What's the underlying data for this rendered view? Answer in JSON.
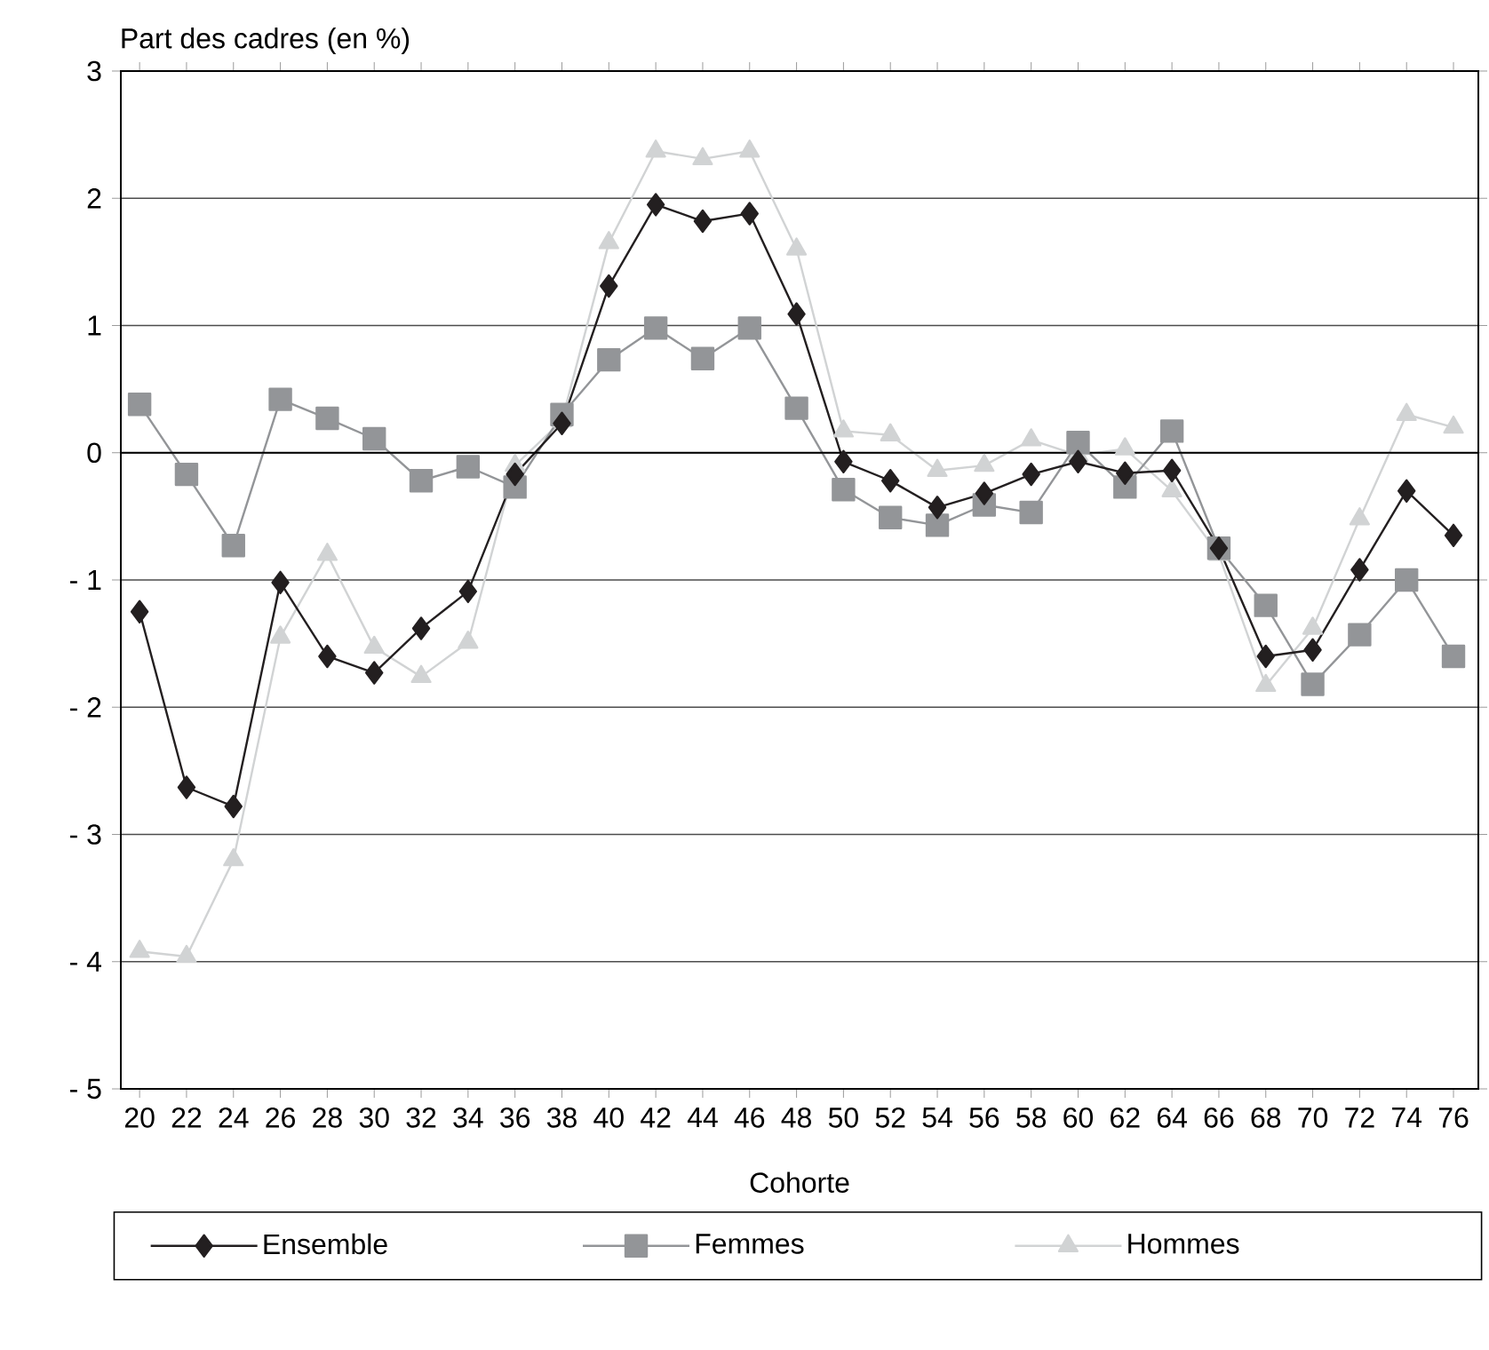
{
  "chart_data": {
    "type": "line",
    "xlabel": "Cohorte",
    "ylabel": "Part des cadres (en %)",
    "categories": [
      "20",
      "22",
      "24",
      "26",
      "28",
      "30",
      "32",
      "34",
      "36",
      "38",
      "40",
      "42",
      "44",
      "46",
      "48",
      "50",
      "52",
      "54",
      "56",
      "58",
      "60",
      "62",
      "64",
      "66",
      "68",
      "70",
      "72",
      "74",
      "76"
    ],
    "series": [
      {
        "name": "Ensemble",
        "color": "#231f20",
        "marker": "diamond",
        "values": [
          -1.25,
          -2.63,
          -2.78,
          -1.02,
          -1.6,
          -1.73,
          -1.38,
          -1.09,
          -0.17,
          0.23,
          1.31,
          1.95,
          1.82,
          1.88,
          1.09,
          -0.07,
          -0.22,
          -0.43,
          -0.32,
          -0.17,
          -0.07,
          -0.16,
          -0.14,
          -0.75,
          -1.6,
          -1.55,
          -0.92,
          -0.3,
          -0.65
        ]
      },
      {
        "name": "Femmes",
        "color": "#939598",
        "marker": "square",
        "values": [
          0.38,
          -0.17,
          -0.73,
          0.42,
          0.27,
          0.11,
          -0.22,
          -0.11,
          -0.27,
          0.3,
          0.73,
          0.98,
          0.74,
          0.98,
          0.35,
          -0.29,
          -0.51,
          -0.57,
          -0.41,
          -0.47,
          0.08,
          -0.27,
          0.17,
          -0.75,
          -1.2,
          -1.82,
          -1.43,
          -1.0,
          -1.6
        ]
      },
      {
        "name": "Hommes",
        "color": "#d1d3d4",
        "marker": "triangle",
        "values": [
          -3.92,
          -3.96,
          -3.2,
          -1.45,
          -0.8,
          -1.53,
          -1.76,
          -1.49,
          -0.1,
          0.25,
          1.65,
          2.37,
          2.31,
          2.37,
          1.6,
          0.17,
          0.14,
          -0.14,
          -0.1,
          0.1,
          -0.02,
          0.03,
          -0.3,
          -0.8,
          -1.83,
          -1.38,
          -0.52,
          0.3,
          0.2
        ]
      }
    ],
    "ylim": [
      -5,
      3
    ],
    "yticks": [
      {
        "value": -5,
        "label": "- 5"
      },
      {
        "value": -4,
        "label": "- 4"
      },
      {
        "value": -3,
        "label": "- 3"
      },
      {
        "value": -2,
        "label": "- 2"
      },
      {
        "value": -1,
        "label": "- 1"
      },
      0,
      1,
      2,
      3
    ],
    "grid": "y",
    "legend": "bottom",
    "line_style": "solid"
  }
}
